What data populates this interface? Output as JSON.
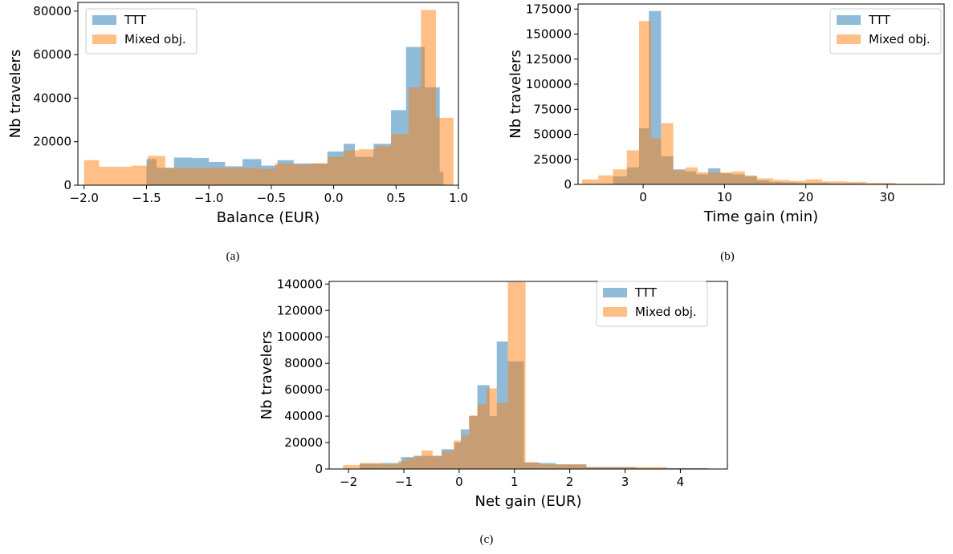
{
  "colors": {
    "ttt": "#1f77b4",
    "mixed": "#ff7f0e",
    "axis": "#000000",
    "legend_border": "#cccccc"
  },
  "panels": [
    {
      "caption": "(a)",
      "chart_data": {
        "type": "bar",
        "title": "",
        "xlabel": "Balance (EUR)",
        "ylabel": "Nb travelers",
        "xlim": [
          -2.05,
          1.0
        ],
        "ylim": [
          0,
          84000
        ],
        "xticks": [
          -2.0,
          -1.5,
          -1.0,
          -0.5,
          0.0,
          0.5,
          1.0
        ],
        "xtick_labels": [
          "−2.0",
          "−1.5",
          "−1.0",
          "−0.5",
          "0.0",
          "0.5",
          "1.0"
        ],
        "yticks": [
          0,
          20000,
          40000,
          60000,
          80000
        ],
        "ytick_labels": [
          "0",
          "20000",
          "40000",
          "60000",
          "80000"
        ],
        "legend_position": "upper-left",
        "series": [
          {
            "name": "TTT",
            "color_key": "ttt",
            "bins": [
              [
                -1.5,
                -1.42,
                12000
              ],
              [
                -1.42,
                -1.28,
                8000
              ],
              [
                -1.28,
                -1.13,
                12700
              ],
              [
                -1.13,
                -1.0,
                12500
              ],
              [
                -1.0,
                -0.87,
                10700
              ],
              [
                -0.87,
                -0.73,
                8700
              ],
              [
                -0.73,
                -0.58,
                12000
              ],
              [
                -0.58,
                -0.45,
                9000
              ],
              [
                -0.45,
                -0.32,
                11500
              ],
              [
                -0.32,
                -0.18,
                10000
              ],
              [
                -0.18,
                -0.05,
                10000
              ],
              [
                -0.05,
                0.08,
                15500
              ],
              [
                0.08,
                0.17,
                19000
              ],
              [
                0.17,
                0.32,
                13000
              ],
              [
                0.32,
                0.46,
                19000
              ],
              [
                0.46,
                0.58,
                34500
              ],
              [
                0.58,
                0.73,
                63500
              ],
              [
                0.73,
                0.85,
                45000
              ],
              [
                0.85,
                0.88,
                6000
              ]
            ]
          },
          {
            "name": "Mixed obj.",
            "color_key": "mixed",
            "bins": [
              [
                -2.0,
                -1.88,
                11500
              ],
              [
                -1.88,
                -1.62,
                8500
              ],
              [
                -1.62,
                -1.49,
                9000
              ],
              [
                -1.49,
                -1.35,
                13500
              ],
              [
                -1.35,
                -0.6,
                8000
              ],
              [
                -0.6,
                -0.47,
                7500
              ],
              [
                -0.47,
                -0.32,
                10000
              ],
              [
                -0.32,
                -0.18,
                9500
              ],
              [
                -0.18,
                -0.05,
                10000
              ],
              [
                -0.05,
                0.08,
                13000
              ],
              [
                0.08,
                0.2,
                16000
              ],
              [
                0.2,
                0.34,
                16500
              ],
              [
                0.34,
                0.46,
                18000
              ],
              [
                0.46,
                0.6,
                23500
              ],
              [
                0.6,
                0.7,
                45000
              ],
              [
                0.7,
                0.82,
                80500
              ],
              [
                0.82,
                0.96,
                31000
              ]
            ]
          }
        ]
      }
    },
    {
      "caption": "(b)",
      "chart_data": {
        "type": "bar",
        "title": "",
        "xlabel": "Time gain (min)",
        "ylabel": "Nb travelers",
        "xlim": [
          -8,
          37
        ],
        "ylim": [
          0,
          180000
        ],
        "xticks": [
          0,
          10,
          20,
          30
        ],
        "xtick_labels": [
          "0",
          "10",
          "20",
          "30"
        ],
        "yticks": [
          0,
          25000,
          50000,
          75000,
          100000,
          125000,
          150000,
          175000
        ],
        "ytick_labels": [
          "0",
          "25000",
          "50000",
          "75000",
          "100000",
          "125000",
          "150000",
          "175000"
        ],
        "legend_position": "upper-right",
        "series": [
          {
            "name": "TTT",
            "color_key": "ttt",
            "bins": [
              [
                -3.7,
                -2.0,
                8000
              ],
              [
                -2.0,
                -0.5,
                17000
              ],
              [
                -0.5,
                0.7,
                56000
              ],
              [
                0.7,
                2.2,
                173000
              ],
              [
                2.2,
                3.7,
                28000
              ],
              [
                3.7,
                5.2,
                15000
              ],
              [
                5.2,
                6.5,
                13000
              ],
              [
                6.5,
                8.0,
                10000
              ],
              [
                8.0,
                9.5,
                16000
              ],
              [
                9.5,
                11.0,
                11000
              ],
              [
                11.0,
                12.5,
                10000
              ],
              [
                12.5,
                14.0,
                8000
              ],
              [
                14.0,
                15.5,
                4000
              ],
              [
                15.5,
                17.0,
                2500
              ],
              [
                17.0,
                19.0,
                2000
              ],
              [
                19.0,
                23.0,
                1500
              ],
              [
                23.0,
                27.0,
                1000
              ],
              [
                27.0,
                31.0,
                600
              ],
              [
                31.0,
                36.0,
                300
              ]
            ]
          },
          {
            "name": "Mixed obj.",
            "color_key": "mixed",
            "bins": [
              [
                -7.5,
                -5.5,
                5000
              ],
              [
                -5.5,
                -3.7,
                9000
              ],
              [
                -3.7,
                -2.0,
                15000
              ],
              [
                -2.0,
                -0.5,
                34000
              ],
              [
                -0.5,
                1.0,
                163000
              ],
              [
                1.0,
                2.2,
                46000
              ],
              [
                2.2,
                3.7,
                61000
              ],
              [
                3.7,
                5.2,
                14000
              ],
              [
                5.2,
                6.7,
                17000
              ],
              [
                6.7,
                8.0,
                12000
              ],
              [
                8.0,
                9.5,
                12000
              ],
              [
                9.5,
                11.0,
                12000
              ],
              [
                11.0,
                12.5,
                13000
              ],
              [
                12.5,
                14.0,
                9000
              ],
              [
                14.0,
                16.0,
                6000
              ],
              [
                16.0,
                18.0,
                4500
              ],
              [
                18.0,
                20.0,
                3500
              ],
              [
                20.0,
                22.0,
                5000
              ],
              [
                22.0,
                25.0,
                3000
              ],
              [
                25.0,
                27.5,
                2500
              ],
              [
                27.5,
                31.0,
                1500
              ],
              [
                31.0,
                36.0,
                700
              ]
            ]
          }
        ]
      }
    },
    {
      "caption": "(c)",
      "chart_data": {
        "type": "bar",
        "title": "",
        "xlabel": "Net gain (EUR)",
        "ylabel": "Nb travelers",
        "xlim": [
          -2.35,
          4.85
        ],
        "ylim": [
          0,
          142000
        ],
        "xticks": [
          -2,
          -1,
          0,
          1,
          2,
          3,
          4
        ],
        "xtick_labels": [
          "−2",
          "−1",
          "0",
          "1",
          "2",
          "3",
          "4"
        ],
        "yticks": [
          0,
          20000,
          40000,
          60000,
          80000,
          100000,
          120000,
          140000
        ],
        "ytick_labels": [
          "0",
          "20000",
          "40000",
          "60000",
          "80000",
          "100000",
          "120000",
          "140000"
        ],
        "legend_position": "upper-right",
        "series": [
          {
            "name": "TTT",
            "color_key": "ttt",
            "bins": [
              [
                -1.8,
                -1.42,
                4000
              ],
              [
                -1.42,
                -1.05,
                4500
              ],
              [
                -1.05,
                -0.82,
                9000
              ],
              [
                -0.82,
                -0.6,
                10000
              ],
              [
                -0.6,
                -0.32,
                10000
              ],
              [
                -0.32,
                -0.08,
                15000
              ],
              [
                -0.08,
                0.03,
                20000
              ],
              [
                0.03,
                0.18,
                30000
              ],
              [
                0.18,
                0.33,
                40000
              ],
              [
                0.33,
                0.55,
                63500
              ],
              [
                0.55,
                0.68,
                40000
              ],
              [
                0.68,
                0.88,
                96500
              ],
              [
                0.88,
                1.17,
                81500
              ],
              [
                1.17,
                1.45,
                5000
              ],
              [
                1.45,
                1.75,
                4500
              ],
              [
                1.75,
                2.3,
                3500
              ],
              [
                2.3,
                3.2,
                1500
              ],
              [
                3.2,
                4.5,
                700
              ]
            ]
          },
          {
            "name": "Mixed obj.",
            "color_key": "mixed",
            "bins": [
              [
                -2.1,
                -1.8,
                3000
              ],
              [
                -1.8,
                -1.4,
                4500
              ],
              [
                -1.4,
                -1.1,
                3500
              ],
              [
                -1.1,
                -0.95,
                6000
              ],
              [
                -0.95,
                -0.82,
                8000
              ],
              [
                -0.82,
                -0.68,
                9500
              ],
              [
                -0.68,
                -0.48,
                14000
              ],
              [
                -0.48,
                -0.3,
                10000
              ],
              [
                -0.3,
                -0.1,
                13500
              ],
              [
                -0.1,
                0.05,
                21500
              ],
              [
                0.05,
                0.18,
                25500
              ],
              [
                0.18,
                0.33,
                40500
              ],
              [
                0.33,
                0.5,
                49000
              ],
              [
                0.5,
                0.68,
                61000
              ],
              [
                0.68,
                0.88,
                50000
              ],
              [
                0.88,
                1.2,
                141500
              ],
              [
                1.2,
                1.45,
                5000
              ],
              [
                1.45,
                1.75,
                3500
              ],
              [
                1.75,
                2.3,
                3500
              ],
              [
                2.3,
                3.2,
                1500
              ],
              [
                3.2,
                3.75,
                1500
              ],
              [
                3.75,
                4.5,
                500
              ]
            ]
          }
        ]
      }
    }
  ]
}
